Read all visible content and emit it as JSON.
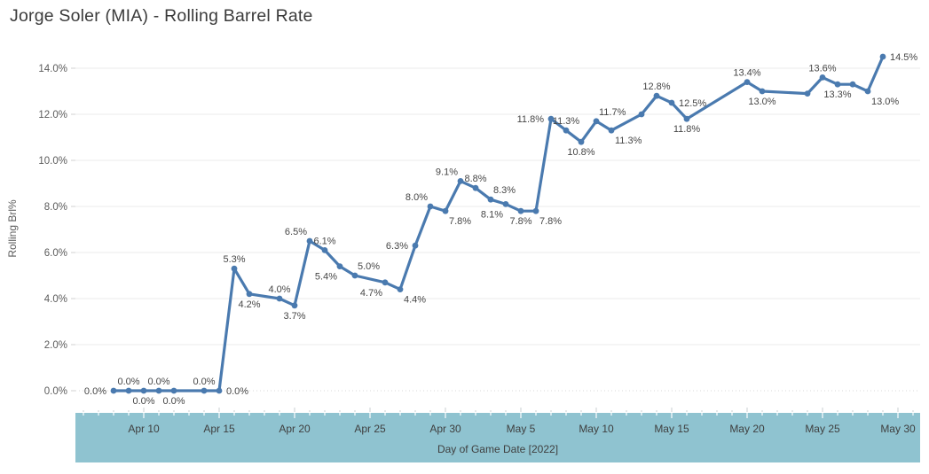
{
  "title": "Jorge Soler (MIA) - Rolling Barrel Rate",
  "chart_data": {
    "type": "line",
    "title": "Jorge Soler (MIA) - Rolling Barrel Rate",
    "xlabel": "Day of Game Date [2022]",
    "ylabel": "Rolling Brl%",
    "y_ticks": [
      "0.0%",
      "2.0%",
      "4.0%",
      "6.0%",
      "8.0%",
      "10.0%",
      "12.0%",
      "14.0%"
    ],
    "x_ticks": [
      "Apr 10",
      "Apr 15",
      "Apr 20",
      "Apr 25",
      "Apr 30",
      "May 5",
      "May 10",
      "May 15",
      "May 20",
      "May 25",
      "May 30"
    ],
    "ylim": [
      0,
      15.2
    ],
    "grid": true,
    "legend": "none",
    "colors": {
      "line": "#4a7aaf",
      "axis_band": "#8fc3d0",
      "gridline": "#ebebeb",
      "zero_line": "#d9d9d9",
      "axis_text": "#5b5b5b",
      "band_text": "#3f3f3f",
      "label_text": "#464646",
      "tick": "#c9cfd2"
    },
    "points": [
      {
        "date": "Apr 8",
        "day": -2,
        "value": 0.0,
        "label": "0.0%",
        "placement": "left"
      },
      {
        "date": "Apr 9",
        "day": -1,
        "value": 0.0,
        "label": "0.0%",
        "placement": "above"
      },
      {
        "date": "Apr 10",
        "day": 0,
        "value": 0.0,
        "label": "0.0%",
        "placement": "below"
      },
      {
        "date": "Apr 11",
        "day": 1,
        "value": 0.0,
        "label": "0.0%",
        "placement": "above"
      },
      {
        "date": "Apr 12",
        "day": 2,
        "value": 0.0,
        "label": "0.0%",
        "placement": "below"
      },
      {
        "date": "Apr 14",
        "day": 4,
        "value": 0.0,
        "label": "0.0%",
        "placement": "above"
      },
      {
        "date": "Apr 15",
        "day": 5,
        "value": 0.0,
        "label": "0.0%",
        "placement": "right"
      },
      {
        "date": "Apr 16",
        "day": 6,
        "value": 5.3,
        "label": "5.3%",
        "placement": "above"
      },
      {
        "date": "Apr 17",
        "day": 7,
        "value": 4.2,
        "label": "4.2%",
        "placement": "below"
      },
      {
        "date": "Apr 19",
        "day": 9,
        "value": 4.0,
        "label": "4.0%",
        "placement": "above"
      },
      {
        "date": "Apr 20",
        "day": 10,
        "value": 3.7,
        "label": "3.7%",
        "placement": "below"
      },
      {
        "date": "Apr 21",
        "day": 11,
        "value": 6.5,
        "label": "6.5%",
        "placement": "above-left"
      },
      {
        "date": "Apr 22",
        "day": 12,
        "value": 6.1,
        "label": "6.1%",
        "placement": "above"
      },
      {
        "date": "Apr 23",
        "day": 13,
        "value": 5.4,
        "label": "5.4%",
        "placement": "below-left"
      },
      {
        "date": "Apr 24",
        "day": 14,
        "value": 5.0,
        "label": "5.0%",
        "placement": "above-right"
      },
      {
        "date": "Apr 26",
        "day": 16,
        "value": 4.7,
        "label": "4.7%",
        "placement": "below-left"
      },
      {
        "date": "Apr 27",
        "day": 17,
        "value": 4.4,
        "label": "4.4%",
        "placement": "below-right"
      },
      {
        "date": "Apr 28",
        "day": 18,
        "value": 6.3,
        "label": "6.3%",
        "placement": "left"
      },
      {
        "date": "Apr 29",
        "day": 19,
        "value": 8.0,
        "label": "8.0%",
        "placement": "above-left"
      },
      {
        "date": "Apr 30",
        "day": 20,
        "value": 7.8,
        "label": "7.8%",
        "placement": "below-right"
      },
      {
        "date": "May 1",
        "day": 21,
        "value": 9.1,
        "label": "9.1%",
        "placement": "above-left"
      },
      {
        "date": "May 2",
        "day": 22,
        "value": 8.8,
        "label": "8.8%",
        "placement": "above"
      },
      {
        "date": "May 3",
        "day": 23,
        "value": 8.3,
        "label": "8.3%",
        "placement": "above-right"
      },
      {
        "date": "May 4",
        "day": 24,
        "value": 8.1,
        "label": "8.1%",
        "placement": "below-left"
      },
      {
        "date": "May 5",
        "day": 25,
        "value": 7.8,
        "label": "7.8%",
        "placement": "below"
      },
      {
        "date": "May 6",
        "day": 26,
        "value": 7.8,
        "label": "7.8%",
        "placement": "below-right"
      },
      {
        "date": "May 7",
        "day": 27,
        "value": 11.8,
        "label": "11.8%",
        "placement": "left"
      },
      {
        "date": "May 8",
        "day": 28,
        "value": 11.3,
        "label": "11.3%",
        "placement": "above"
      },
      {
        "date": "May 9",
        "day": 29,
        "value": 10.8,
        "label": "10.8%",
        "placement": "below"
      },
      {
        "date": "May 10",
        "day": 30,
        "value": 11.7,
        "label": "11.7%",
        "placement": "above-right"
      },
      {
        "date": "May 11",
        "day": 31,
        "value": 11.3,
        "label": "11.3%",
        "placement": "below-right"
      },
      {
        "date": "May 13",
        "day": 33,
        "value": 12.0,
        "label": "",
        "placement": "above"
      },
      {
        "date": "May 14",
        "day": 34,
        "value": 12.8,
        "label": "12.8%",
        "placement": "above"
      },
      {
        "date": "May 15",
        "day": 35,
        "value": 12.5,
        "label": "12.5%",
        "placement": "right"
      },
      {
        "date": "May 16",
        "day": 36,
        "value": 11.8,
        "label": "11.8%",
        "placement": "below"
      },
      {
        "date": "May 20",
        "day": 40,
        "value": 13.4,
        "label": "13.4%",
        "placement": "above"
      },
      {
        "date": "May 21",
        "day": 41,
        "value": 13.0,
        "label": "13.0%",
        "placement": "below"
      },
      {
        "date": "May 24",
        "day": 44,
        "value": 12.9,
        "label": "",
        "placement": "above"
      },
      {
        "date": "May 25",
        "day": 45,
        "value": 13.6,
        "label": "13.6%",
        "placement": "above"
      },
      {
        "date": "May 26",
        "day": 46,
        "value": 13.3,
        "label": "13.3%",
        "placement": "below"
      },
      {
        "date": "May 27",
        "day": 47,
        "value": 13.3,
        "label": "",
        "placement": "above"
      },
      {
        "date": "May 28",
        "day": 48,
        "value": 13.0,
        "label": "13.0%",
        "placement": "below-right"
      },
      {
        "date": "May 29",
        "day": 49,
        "value": 14.5,
        "label": "14.5%",
        "placement": "right"
      }
    ]
  }
}
